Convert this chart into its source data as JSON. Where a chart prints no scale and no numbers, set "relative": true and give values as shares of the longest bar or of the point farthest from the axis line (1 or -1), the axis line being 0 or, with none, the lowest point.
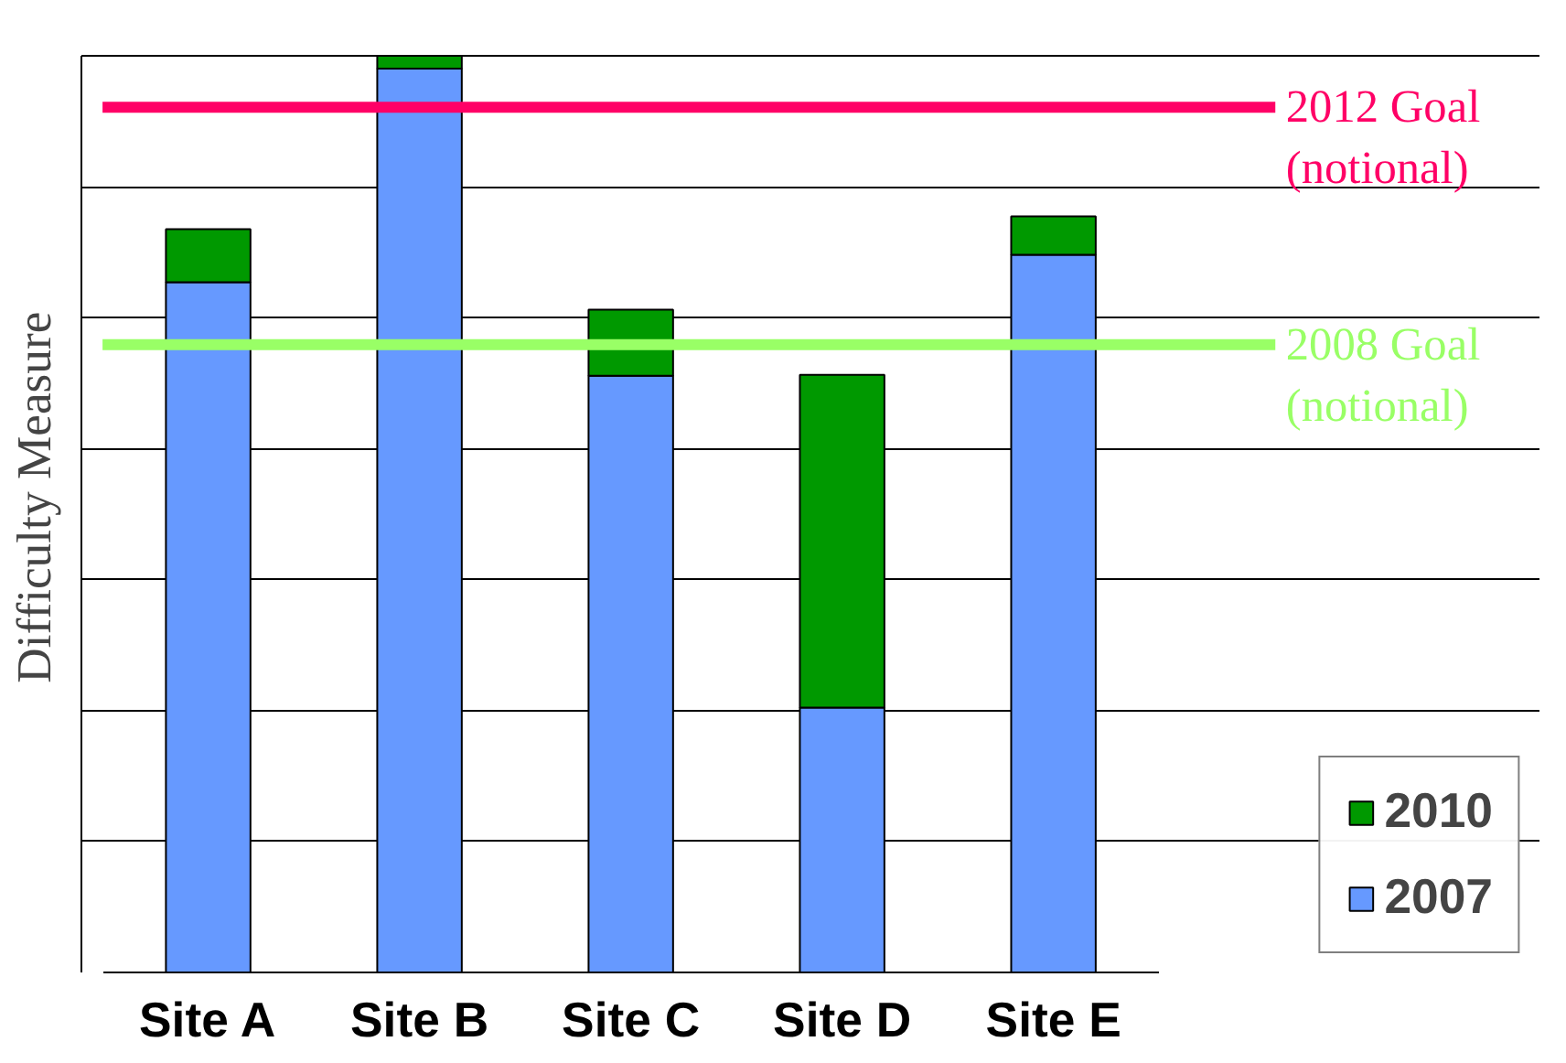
{
  "chart_data": {
    "type": "bar",
    "stacked": true,
    "relative": true,
    "ylabel": "Difficulty  Measure",
    "categories": [
      "Site A",
      "Site B",
      "Site C",
      "Site D",
      "Site E"
    ],
    "series": [
      {
        "name": "2007",
        "color": "#6699ff",
        "values": [
          0.753,
          0.986,
          0.651,
          0.289,
          0.783
        ]
      },
      {
        "name": "2010",
        "color": "#009900",
        "values": [
          0.058,
          0.014,
          0.072,
          0.363,
          0.042
        ]
      }
    ],
    "ref_lines": [
      {
        "axis": "y",
        "value": 0.944,
        "label": "2012 Goal\n(notional)",
        "color": "#ff0066"
      },
      {
        "axis": "y",
        "value": 0.685,
        "label": "2008 Goal\n(notional)",
        "color": "#99ff66"
      }
    ],
    "grid": "y",
    "legend": "right"
  }
}
